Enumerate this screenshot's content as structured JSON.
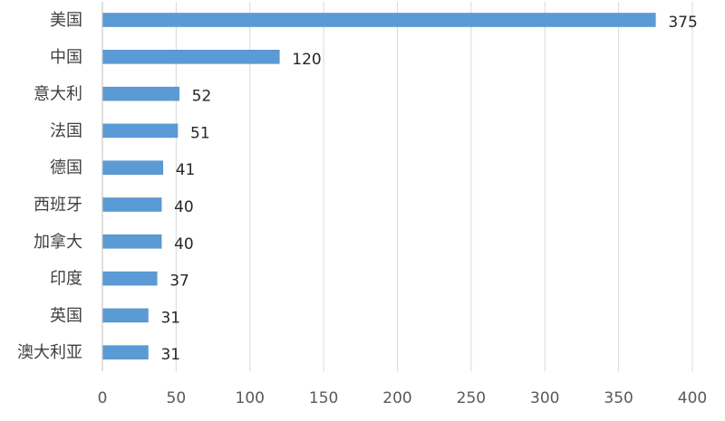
{
  "chart_data": {
    "type": "bar",
    "orientation": "horizontal",
    "categories": [
      "美国",
      "中国",
      "意大利",
      "法国",
      "德国",
      "西班牙",
      "加拿大",
      "印度",
      "英国",
      "澳大利亚"
    ],
    "values": [
      375,
      120,
      52,
      51,
      41,
      40,
      40,
      37,
      31,
      31
    ],
    "value_labels": [
      "375",
      "120",
      "52",
      "51",
      "41",
      "40",
      "40",
      "37",
      "31",
      "31"
    ],
    "xticks": [
      "0",
      "50",
      "100",
      "150",
      "200",
      "250",
      "300",
      "350",
      "400"
    ],
    "xlim": [
      0,
      400
    ],
    "grid": true,
    "title": "",
    "xlabel": "",
    "ylabel": "",
    "bar_color": "#5b9bd5"
  }
}
